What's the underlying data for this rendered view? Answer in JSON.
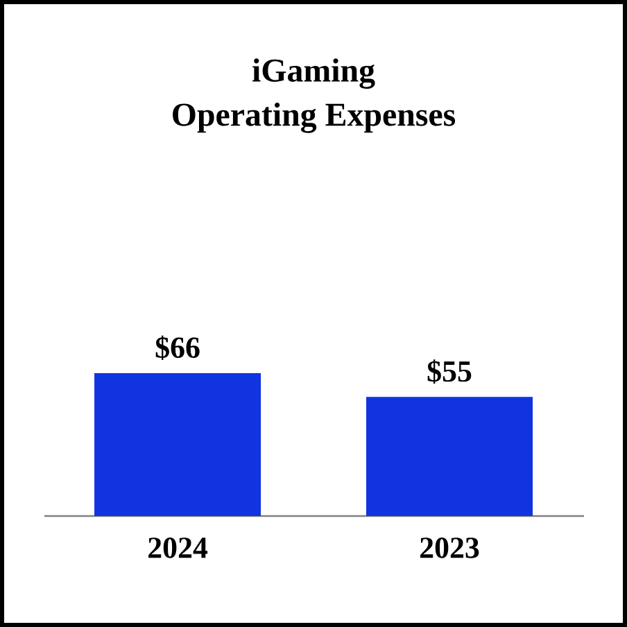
{
  "chart_data": {
    "type": "bar",
    "title": "iGaming\nOperating Expenses",
    "categories": [
      "2024",
      "2023"
    ],
    "values": [
      66,
      55
    ],
    "value_labels": [
      "$66",
      "$55"
    ],
    "color": "#1034e0"
  }
}
